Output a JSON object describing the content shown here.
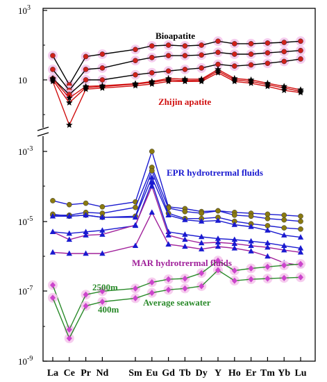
{
  "chart_data": {
    "type": "line",
    "categories": [
      "La",
      "Ce",
      "Pr",
      "Nd",
      "Sm",
      "Eu",
      "Gd",
      "Tb",
      "Dy",
      "Y",
      "Ho",
      "Er",
      "Tm",
      "Yb",
      "Lu"
    ],
    "category_positions": [
      0,
      1,
      2,
      3,
      5,
      6,
      7,
      8,
      9,
      10,
      11,
      12,
      13,
      14,
      15
    ],
    "yscale": "log",
    "y_ticks": [
      {
        "label": "10",
        "sup": "3"
      },
      {
        "label": "10",
        "sup": ""
      },
      {
        "label": "10",
        "sup": "-3"
      },
      {
        "label": "10",
        "sup": "-5"
      },
      {
        "label": "10",
        "sup": "-7"
      },
      {
        "label": "10",
        "sup": "-9"
      }
    ],
    "axis_break": true,
    "annotations": [
      {
        "text": "Bioapatite",
        "color": "#000000"
      },
      {
        "text": "Zhijin apatite",
        "color": "#d01010"
      },
      {
        "text": "EPR hydrotrermal fluids",
        "color": "#1a1ad0"
      },
      {
        "text": "MAR hydrotrermal fluids",
        "color": "#a0209a"
      },
      {
        "text": "2500m",
        "color": "#2a8a2a"
      },
      {
        "text": "Average seawater",
        "color": "#2a8a2a"
      },
      {
        "text": "400m",
        "color": "#2a8a2a"
      }
    ],
    "series_groups": [
      {
        "group": "Bioapatite",
        "panel": "upper",
        "line_color": "#000000",
        "marker": "circle",
        "marker_color": "#d0201a",
        "halo": true,
        "series": [
          {
            "values": [
              50,
              7.2,
              47,
              55,
              75,
              95,
              100,
              95,
              100,
              130,
              110,
              110,
              115,
              120,
              130
            ]
          },
          {
            "values": [
              20,
              5.0,
              20,
              22,
              36,
              44,
              50,
              50,
              52,
              62,
              55,
              55,
              60,
              65,
              70
            ]
          },
          {
            "values": [
              11,
              3.8,
              10,
              10,
              14,
              16,
              18,
              20,
              22,
              28,
              25,
              27,
              30,
              34,
              40
            ]
          }
        ]
      },
      {
        "group": "Zhijin apatite",
        "panel": "upper",
        "line_color": "#d01010",
        "marker": "star",
        "marker_color": "#000000",
        "series": [
          {
            "values": [
              11,
              3.0,
              6.5,
              6.8,
              7.8,
              9.0,
              11.0,
              10.5,
              10.5,
              20.0,
              11.0,
              10.0,
              8.0,
              6.5,
              5.2
            ]
          },
          {
            "values": [
              10,
              2.2,
              6.0,
              6.4,
              7.5,
              8.5,
              10.0,
              9.5,
              9.8,
              18.0,
              10.0,
              9.0,
              7.3,
              5.8,
              4.7
            ]
          },
          {
            "values": [
              9,
              0.5,
              5.4,
              5.8,
              6.8,
              7.6,
              9.0,
              9.0,
              9.0,
              16.0,
              9.0,
              8.0,
              6.5,
              5.0,
              4.3
            ]
          }
        ]
      },
      {
        "group": "EPR hydrotrermal fluids",
        "panel": "lower",
        "line_color": "#1a1ad0",
        "series": [
          {
            "marker": "circle",
            "marker_color": "#8a7a10",
            "values": [
              3.9e-05,
              3e-05,
              3.3e-05,
              2.6e-05,
              3.6e-05,
              0.001,
              2.6e-05,
              2.3e-05,
              1.9e-05,
              2e-05,
              1.8e-05,
              1.7e-05,
              1.6e-05,
              1.5e-05,
              1.4e-05
            ]
          },
          {
            "marker": "circle",
            "marker_color": "#8a7a10",
            "values": [
              1.5e-05,
              1.5e-05,
              1.8e-05,
              1.7e-05,
              2.5e-05,
              0.00035,
              2.4e-05,
              1.9e-05,
              1.7e-05,
              2e-05,
              1.5e-05,
              1.4e-05,
              1.2e-05,
              1.1e-05,
              1e-05
            ]
          },
          {
            "marker": "circle",
            "marker_color": "#8a7a10",
            "values": [
              1.6e-05,
              1.4e-05,
              1.5e-05,
              1.3e-05,
              1.4e-05,
              0.00028,
              1.7e-05,
              1.2e-05,
              1.2e-05,
              1.3e-05,
              1e-05,
              8.5e-06,
              7.5e-06,
              6.5e-06,
              6e-06
            ]
          },
          {
            "marker": "triangle",
            "marker_color": "#1a1ad0",
            "values": [
              1.4e-05,
              1.4e-05,
              1.5e-05,
              1.3e-05,
              1.3e-05,
              0.00018,
              1.5e-05,
              1.1e-05,
              1e-05,
              1.05e-05,
              8e-06,
              7e-06,
              5.5e-06,
              4e-06,
              3.5e-06
            ]
          },
          {
            "marker": "triangle",
            "marker_color": "#1a1ad0",
            "values": [
              5e-06,
              4.5e-06,
              5e-06,
              5.5e-06,
              7.5e-06,
              0.00013,
              5e-06,
              4.2e-06,
              3.6e-06,
              3.2e-06,
              3e-06,
              2.7e-06,
              2.4e-06,
              2e-06,
              1.7e-06
            ]
          }
        ]
      },
      {
        "group": "MAR hydrotrermal fluids",
        "panel": "lower",
        "line_color": "#a0209a",
        "marker": "triangle",
        "marker_color": "#1a1ad0",
        "series": [
          {
            "values": [
              5e-06,
              3e-06,
              4e-06,
              4.2e-06,
              7.8e-06,
              0.0001,
              4e-06,
              3e-06,
              2.4e-06,
              2.5e-06,
              2.3e-06,
              2e-06,
              1.8e-06,
              1.5e-06,
              1.3e-06
            ]
          },
          {
            "values": [
              1.3e-06,
              1.2e-06,
              1.2e-06,
              1.2e-06,
              2e-06,
              1.8e-05,
              2.2e-06,
              1.9e-06,
              1.6e-06,
              1.9e-06,
              1.7e-06,
              1.4e-06,
              1e-06,
              6.5e-07,
              5.5e-07
            ]
          }
        ]
      },
      {
        "group": "Average seawater",
        "panel": "lower",
        "line_color": "#2a8a2a",
        "marker": "diamond",
        "marker_color": "#cc44cc",
        "halo": true,
        "series": [
          {
            "name": "2500m",
            "values": [
              1.5e-07,
              8e-09,
              8e-08,
              1e-07,
              1.2e-07,
              1.8e-07,
              2.2e-07,
              2.3e-07,
              3.3e-07,
              7.5e-07,
              3.9e-07,
              4.5e-07,
              5e-07,
              5.5e-07,
              6e-07
            ]
          },
          {
            "name": "400m",
            "values": [
              6.5e-08,
              4.5e-09,
              3.8e-08,
              5e-08,
              6.3e-08,
              9e-08,
              1.1e-07,
              1.2e-07,
              1.4e-07,
              4e-07,
              2e-07,
              2.2e-07,
              2.3e-07,
              2.4e-07,
              2.5e-07
            ]
          }
        ]
      }
    ]
  }
}
